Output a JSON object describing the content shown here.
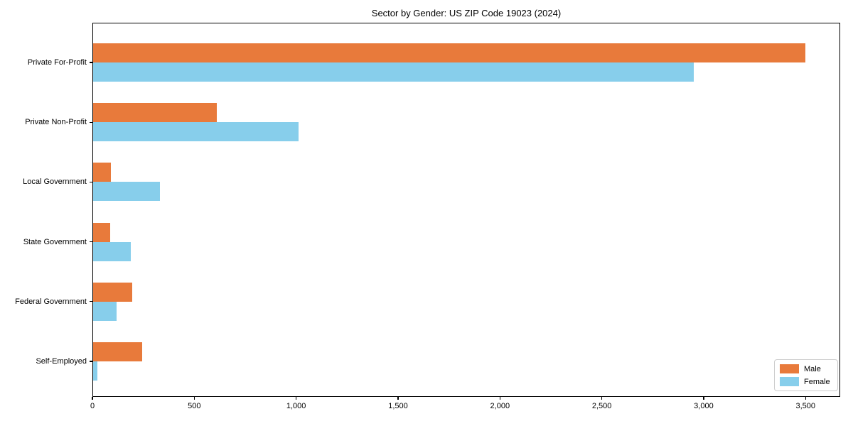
{
  "chart_data": {
    "type": "bar",
    "orientation": "horizontal",
    "title": "Sector by Gender: US ZIP Code 19023 (2024)",
    "categories": [
      "Private For-Profit",
      "Private Non-Profit",
      "Local Government",
      "State Government",
      "Federal Government",
      "Self-Employed"
    ],
    "series": [
      {
        "name": "Male",
        "color": "#e87a3b",
        "values": [
          3500,
          610,
          90,
          88,
          197,
          243
        ]
      },
      {
        "name": "Female",
        "color": "#87ceeb",
        "values": [
          2950,
          1010,
          330,
          190,
          119,
          23
        ]
      }
    ],
    "xlabel": "",
    "ylabel": "",
    "xlim": [
      0,
      3670
    ],
    "xticks": [
      0,
      500,
      1000,
      1500,
      2000,
      2500,
      3000,
      3500
    ],
    "xtick_labels": [
      "0",
      "500",
      "1,000",
      "1,500",
      "2,000",
      "2,500",
      "3,000",
      "3,500"
    ],
    "grid": false,
    "legend_position": "lower right",
    "background_color": "#ffffff",
    "spine_color": "#000000"
  }
}
